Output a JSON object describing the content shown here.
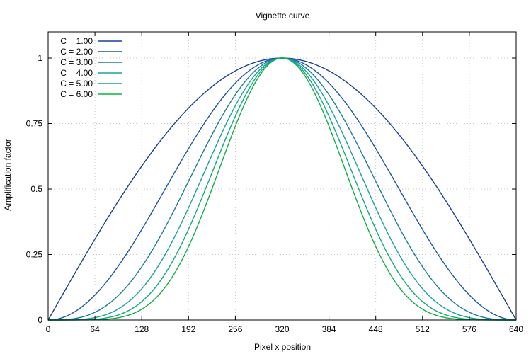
{
  "chart_data": {
    "type": "line",
    "title": "Vignette curve",
    "xlabel": "Pixel x position",
    "ylabel": "Amplification factor",
    "xlim": [
      0,
      640
    ],
    "ylim": [
      0,
      1.1
    ],
    "xticks": [
      0,
      64,
      128,
      192,
      256,
      320,
      384,
      448,
      512,
      576,
      640
    ],
    "yticks": [
      0,
      0.25,
      0.5,
      0.75,
      1
    ],
    "ytick_labels": [
      "0",
      "0.25",
      "0.5",
      "0.75",
      "1"
    ],
    "grid": true,
    "legend_position": "top-left",
    "function": "y = sin(pi * x / 640) ^ C",
    "series": [
      {
        "name": "C = 1.00",
        "exponent": 1,
        "color": "#1a3d9e"
      },
      {
        "name": "C = 2.00",
        "exponent": 2,
        "color": "#1a56a8"
      },
      {
        "name": "C = 3.00",
        "exponent": 3,
        "color": "#1a7aa6"
      },
      {
        "name": "C = 4.00",
        "exponent": 4,
        "color": "#1aa0a0"
      },
      {
        "name": "C = 5.00",
        "exponent": 5,
        "color": "#12aa7a"
      },
      {
        "name": "C = 6.00",
        "exponent": 6,
        "color": "#10b040"
      }
    ]
  }
}
